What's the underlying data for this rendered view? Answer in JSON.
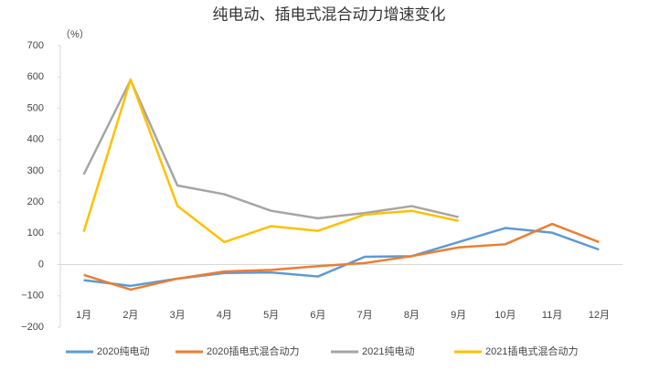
{
  "chart_data": {
    "type": "line",
    "title": "纯电动、插电式混合动力增速变化",
    "y_unit": "（%）",
    "categories": [
      "1月",
      "2月",
      "3月",
      "4月",
      "5月",
      "6月",
      "7月",
      "8月",
      "9月",
      "10月",
      "11月",
      "12月"
    ],
    "series": [
      {
        "name": "2020纯电动",
        "color": "#5b9bd5",
        "values": [
          -50,
          -68,
          -45,
          -27,
          -25,
          -38,
          25,
          27,
          72,
          117,
          102,
          48
        ]
      },
      {
        "name": "2020插电式混合动力",
        "color": "#ed7d31",
        "values": [
          -33,
          -80,
          -45,
          -22,
          -17,
          -5,
          5,
          27,
          55,
          65,
          130,
          72
        ]
      },
      {
        "name": "2021纯电动",
        "color": "#a5a5a5",
        "values": [
          288,
          590,
          253,
          225,
          172,
          148,
          165,
          187,
          152,
          null,
          null,
          null
        ]
      },
      {
        "name": "2021插电式混合动力",
        "color": "#ffc000",
        "values": [
          105,
          592,
          188,
          72,
          123,
          108,
          160,
          172,
          140,
          null,
          null,
          null
        ]
      }
    ],
    "ylim": [
      -200,
      700
    ],
    "yticks": [
      {
        "value": -200,
        "label": "−200"
      },
      {
        "value": -100,
        "label": "−100"
      },
      0,
      100,
      200,
      300,
      400,
      500,
      600,
      700
    ]
  }
}
